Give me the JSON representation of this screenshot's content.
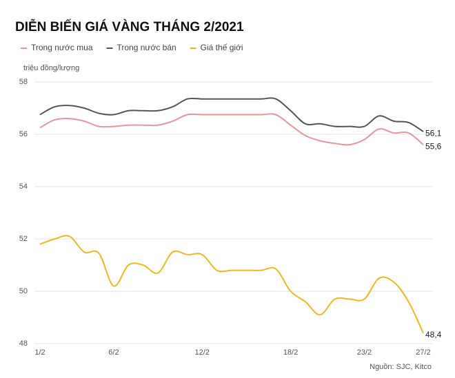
{
  "chart_data": {
    "type": "line",
    "title": "DIỄN BIẾN GIÁ VÀNG THÁNG 2/2021",
    "y_axis_label": "triệu đồng/lượng",
    "source": "Nguồn: SJC, Kitco",
    "categories": [
      "1/2",
      null,
      null,
      null,
      null,
      "6/2",
      null,
      null,
      null,
      null,
      null,
      "12/2",
      null,
      null,
      null,
      null,
      null,
      "18/2",
      null,
      null,
      null,
      null,
      "23/2",
      null,
      null,
      null,
      "27/2"
    ],
    "series": [
      {
        "name": "Trong nước mua",
        "color": "#e8979a",
        "values": [
          56.25,
          56.55,
          56.6,
          56.5,
          56.3,
          56.3,
          56.35,
          56.35,
          56.35,
          56.5,
          56.75,
          56.75,
          56.75,
          56.75,
          56.75,
          56.75,
          56.75,
          56.35,
          55.95,
          55.75,
          55.65,
          55.6,
          55.8,
          56.2,
          56.05,
          56.05,
          55.6
        ],
        "value_labels": [
          null,
          null,
          null,
          null,
          null,
          null,
          null,
          null,
          null,
          null,
          null,
          null,
          null,
          null,
          null,
          null,
          null,
          null,
          null,
          null,
          null,
          null,
          null,
          null,
          null,
          null,
          "55,6"
        ]
      },
      {
        "name": "Trong nước bán",
        "color": "#555555",
        "values": [
          56.75,
          57.05,
          57.1,
          57.0,
          56.8,
          56.75,
          56.9,
          56.9,
          56.9,
          57.05,
          57.35,
          57.35,
          57.35,
          57.35,
          57.35,
          57.35,
          57.35,
          56.9,
          56.4,
          56.4,
          56.3,
          56.3,
          56.3,
          56.7,
          56.5,
          56.45,
          56.1
        ],
        "value_labels": [
          null,
          null,
          null,
          null,
          null,
          null,
          null,
          null,
          null,
          null,
          null,
          null,
          null,
          null,
          null,
          null,
          null,
          null,
          null,
          null,
          null,
          null,
          null,
          null,
          null,
          null,
          "56,1"
        ]
      },
      {
        "name": "Giá thế giới",
        "color": "#f0b81e",
        "values": [
          51.8,
          52.0,
          52.1,
          51.5,
          51.45,
          50.2,
          51.0,
          51.0,
          50.7,
          51.5,
          51.4,
          51.4,
          50.8,
          50.8,
          50.8,
          50.8,
          50.85,
          50.0,
          49.6,
          49.1,
          49.7,
          49.7,
          49.7,
          50.5,
          50.35,
          49.6,
          48.4
        ],
        "value_labels": [
          null,
          null,
          null,
          null,
          null,
          null,
          null,
          null,
          null,
          null,
          null,
          null,
          null,
          null,
          null,
          null,
          null,
          null,
          null,
          null,
          null,
          null,
          null,
          null,
          null,
          null,
          "48,4"
        ]
      }
    ],
    "ylim": [
      48,
      58
    ],
    "yticks": [
      48,
      50,
      52,
      54,
      56,
      58
    ],
    "grid": true,
    "legend": "top-left"
  }
}
